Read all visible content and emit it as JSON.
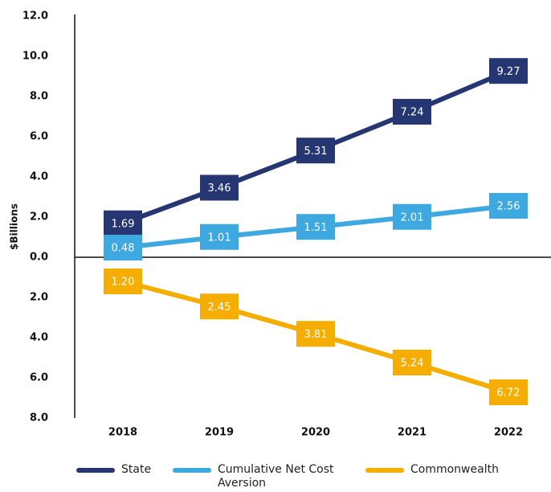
{
  "chart_data": {
    "type": "line",
    "ylabel": "$Billions",
    "categories": [
      "2018",
      "2019",
      "2020",
      "2021",
      "2022"
    ],
    "series": [
      {
        "name": "State",
        "color": "#263672",
        "values": [
          1.69,
          3.46,
          5.31,
          7.24,
          9.27
        ]
      },
      {
        "name": "Cumulative Net Cost Aversion",
        "color": "#3ea8e0",
        "values": [
          0.48,
          1.01,
          1.51,
          2.01,
          2.56
        ]
      },
      {
        "name": "Commonwealth",
        "color": "#f5ad00",
        "values": [
          -1.2,
          -2.45,
          -3.81,
          -5.24,
          -6.72
        ],
        "value_labels": [
          "1.20",
          "2.45",
          "3.81",
          "5.24",
          "6.72"
        ]
      }
    ],
    "ylim": [
      -8,
      12
    ],
    "yticks": [
      {
        "value": 12,
        "label": "12.0"
      },
      {
        "value": 10,
        "label": "10.0"
      },
      {
        "value": 8,
        "label": "8.0"
      },
      {
        "value": 6,
        "label": "6.0"
      },
      {
        "value": 4,
        "label": "4.0"
      },
      {
        "value": 2,
        "label": "2.0"
      },
      {
        "value": 0,
        "label": "0.0"
      },
      {
        "value": -2,
        "label": "2.0"
      },
      {
        "value": -4,
        "label": "4.0"
      },
      {
        "value": -6,
        "label": "6.0"
      },
      {
        "value": -8,
        "label": "8.0"
      }
    ],
    "legend": "bottom"
  }
}
